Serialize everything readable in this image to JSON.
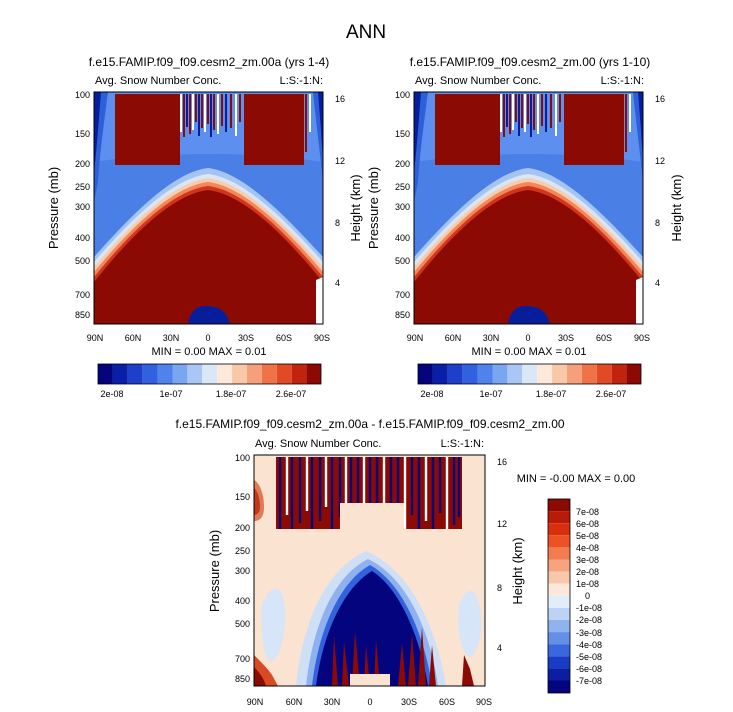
{
  "page_title": "ANN",
  "colors": {
    "dark_blue": "#04047e",
    "light_blue": "#cfe0f6",
    "peach": "#fbe3d2",
    "dark_red": "#8b0a04"
  },
  "chart_data": [
    {
      "type": "heatmap",
      "title": "f.e15.FAMIP.f09_f09.cesm2_zm.00a (yrs 1-4)",
      "subtitle_left": "Avg. Snow Number Conc.",
      "subtitle_right": "L:S:-1:N:",
      "xlabel": "",
      "ylabel": "Pressure (mb)",
      "y2label": "Height (km)",
      "xticks": [
        "90N",
        "60N",
        "30N",
        "0",
        "30S",
        "60S",
        "90S"
      ],
      "yticks": [
        "100",
        "150",
        "200",
        "250",
        "300",
        "400",
        "500",
        "700",
        "850"
      ],
      "y2ticks": [
        "16",
        "12",
        "8",
        "4"
      ],
      "min_max_text": "MIN =  0.00   MAX =  0.01",
      "colorbar_labels": [
        "2e-08",
        "1e-07",
        "1.8e-07",
        "2.6e-07"
      ]
    },
    {
      "type": "heatmap",
      "title": "f.e15.FAMIP.f09_f09.cesm2_zm.00 (yrs 1-10)",
      "subtitle_left": "Avg. Snow Number Conc.",
      "subtitle_right": "L:S:-1:N:",
      "xlabel": "",
      "ylabel": "Pressure (mb)",
      "y2label": "Height (km)",
      "xticks": [
        "90N",
        "60N",
        "30N",
        "0",
        "30S",
        "60S",
        "90S"
      ],
      "yticks": [
        "100",
        "150",
        "200",
        "250",
        "300",
        "400",
        "500",
        "700",
        "850"
      ],
      "y2ticks": [
        "16",
        "12",
        "8",
        "4"
      ],
      "min_max_text": "MIN =  0.00   MAX =  0.01",
      "colorbar_labels": [
        "2e-08",
        "1e-07",
        "1.8e-07",
        "2.6e-07"
      ]
    },
    {
      "type": "heatmap",
      "title": "f.e15.FAMIP.f09_f09.cesm2_zm.00a - f.e15.FAMIP.f09_f09.cesm2_zm.00",
      "subtitle_left": "Avg. Snow Number Conc.",
      "subtitle_right": "L:S:-1:N:",
      "xlabel": "",
      "ylabel": "Pressure (mb)",
      "y2label": "Height (km)",
      "xticks": [
        "90N",
        "60N",
        "30N",
        "0",
        "30S",
        "60S",
        "90S"
      ],
      "yticks": [
        "100",
        "150",
        "200",
        "250",
        "300",
        "400",
        "500",
        "700",
        "850"
      ],
      "y2ticks": [
        "16",
        "12",
        "8",
        "4"
      ],
      "min_max_text": "MIN =  -0.00   MAX =  0.00",
      "colorbar_labels": [
        "7e-08",
        "6e-08",
        "5e-08",
        "4e-08",
        "3e-08",
        "2e-08",
        "1e-08",
        "0",
        "-1e-08",
        "-2e-08",
        "-3e-08",
        "-4e-08",
        "-5e-08",
        "-6e-08",
        "-7e-08"
      ]
    }
  ]
}
